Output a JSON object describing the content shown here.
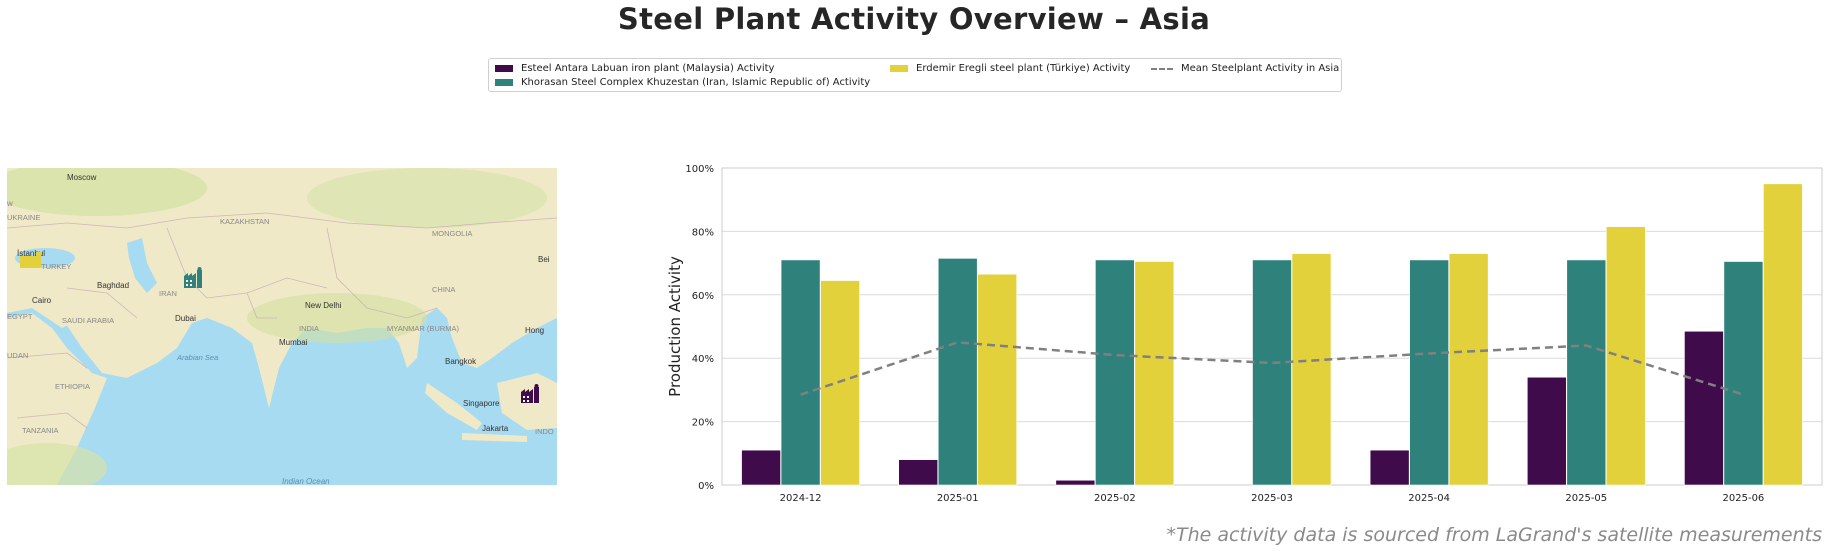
{
  "title": "Steel Plant Activity Overview – Asia",
  "footnote": "*The activity data is sourced from LaGrand's satellite measurements",
  "colors": {
    "esteel": "#3f0b4a",
    "khorasan": "#2e827b",
    "erdemir": "#e2d13a",
    "mean": "#808080"
  },
  "map": {
    "labels": {
      "moscow": "Moscow",
      "ukraine": "UKRAINE",
      "kazakhstan": "KAZAKHSTAN",
      "mongolia": "MONGOLIA",
      "istanbul": "İstanbul",
      "turkey": "TURKEY",
      "baghdad": "Baghdad",
      "iran": "IRAN",
      "china": "CHINA",
      "cairo": "Cairo",
      "egypt": "EGYPT",
      "saudi": "SAUDI ARABIA",
      "dubai": "Dubai",
      "new_delhi": "New Delhi",
      "india": "INDIA",
      "myanmar": "MYANMAR (BURMA)",
      "hong": "Hong",
      "sudan": "UDAN",
      "arabian_sea": "Arabian Sea",
      "mumbai": "Mumbai",
      "bangkok": "Bangkok",
      "ethiopia": "ETHIOPIA",
      "singapore": "Singapore",
      "tanzania": "TANZANIA",
      "jakarta": "Jakarta",
      "indo": "INDO",
      "indian_ocean": "Indian Ocean",
      "bei": "Bei",
      "w": "w"
    },
    "markers": [
      {
        "plant": "Erdemir Eregli steel plant (Türkiye)",
        "icon": "factory-icon",
        "color": "#e2d13a"
      },
      {
        "plant": "Khorasan Steel Complex Khuzestan (Iran, Islamic Republic of)",
        "icon": "factory-icon",
        "color": "#2e827b"
      },
      {
        "plant": "Esteel Antara Labuan iron plant (Malaysia)",
        "icon": "factory-icon",
        "color": "#3f0b4a"
      }
    ]
  },
  "chart_data": {
    "type": "bar",
    "title": "",
    "xlabel": "",
    "ylabel": "Production Activity",
    "categories": [
      "2024-12",
      "2025-01",
      "2025-02",
      "2025-03",
      "2025-04",
      "2025-05",
      "2025-06"
    ],
    "ylim": [
      0,
      100
    ],
    "yticks": [
      "0%",
      "20%",
      "40%",
      "60%",
      "80%",
      "100%"
    ],
    "grid": true,
    "legend_position": "top-center",
    "series": [
      {
        "name": "Esteel Antara Labuan iron plant (Malaysia) Activity",
        "type": "bar",
        "color": "#3f0b4a",
        "values": [
          11,
          8,
          1.5,
          0,
          11,
          34,
          48.5
        ]
      },
      {
        "name": "Khorasan Steel Complex Khuzestan (Iran, Islamic Republic of) Activity",
        "type": "bar",
        "color": "#2e827b",
        "values": [
          71,
          71.5,
          71,
          71,
          71,
          71,
          70.5
        ]
      },
      {
        "name": "Erdemir Eregli steel plant (Türkiye) Activity",
        "type": "bar",
        "color": "#e2d13a",
        "values": [
          64.5,
          66.5,
          70.5,
          73,
          73,
          81.5,
          95
        ]
      },
      {
        "name": "Mean Steelplant Activity in Asia",
        "type": "line",
        "style": "dashed",
        "color": "#808080",
        "values": [
          28.5,
          45,
          41,
          38.5,
          41.5,
          44,
          28.5
        ]
      }
    ]
  }
}
